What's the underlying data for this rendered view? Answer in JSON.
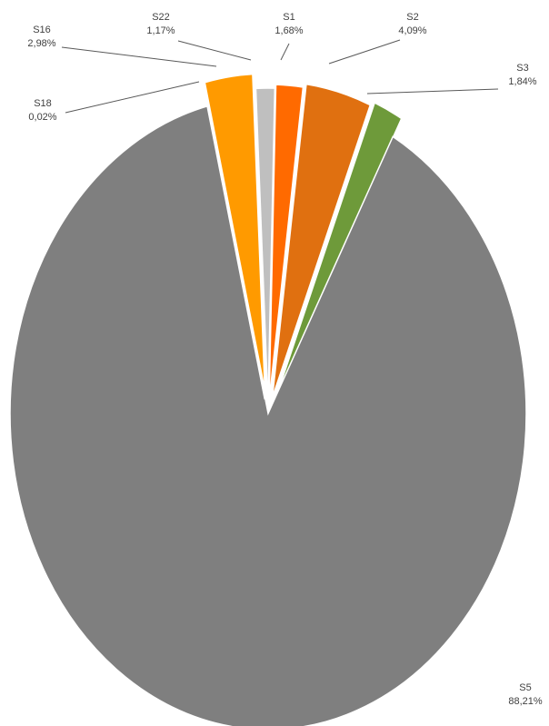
{
  "chart_data": {
    "type": "pie",
    "exploded": true,
    "series": [
      {
        "name": "S1",
        "value": 1.68,
        "label": "1,68%",
        "color": "#FF6A00"
      },
      {
        "name": "S2",
        "value": 4.09,
        "label": "4,09%",
        "color": "#E07010"
      },
      {
        "name": "S3",
        "value": 1.84,
        "label": "1,84%",
        "color": "#6E9A3A"
      },
      {
        "name": "S5",
        "value": 88.21,
        "label": "88,21%",
        "color": "#7F7F7F"
      },
      {
        "name": "S18",
        "value": 0.02,
        "label": "0,02%",
        "color": "#404040"
      },
      {
        "name": "S16",
        "value": 2.98,
        "label": "2,98%",
        "color": "#FF9A00"
      },
      {
        "name": "S22",
        "value": 1.17,
        "label": "1,17%",
        "color": "#BFBFBF"
      }
    ],
    "legend": "none",
    "data_labels": "outside-with-leader-lines"
  }
}
